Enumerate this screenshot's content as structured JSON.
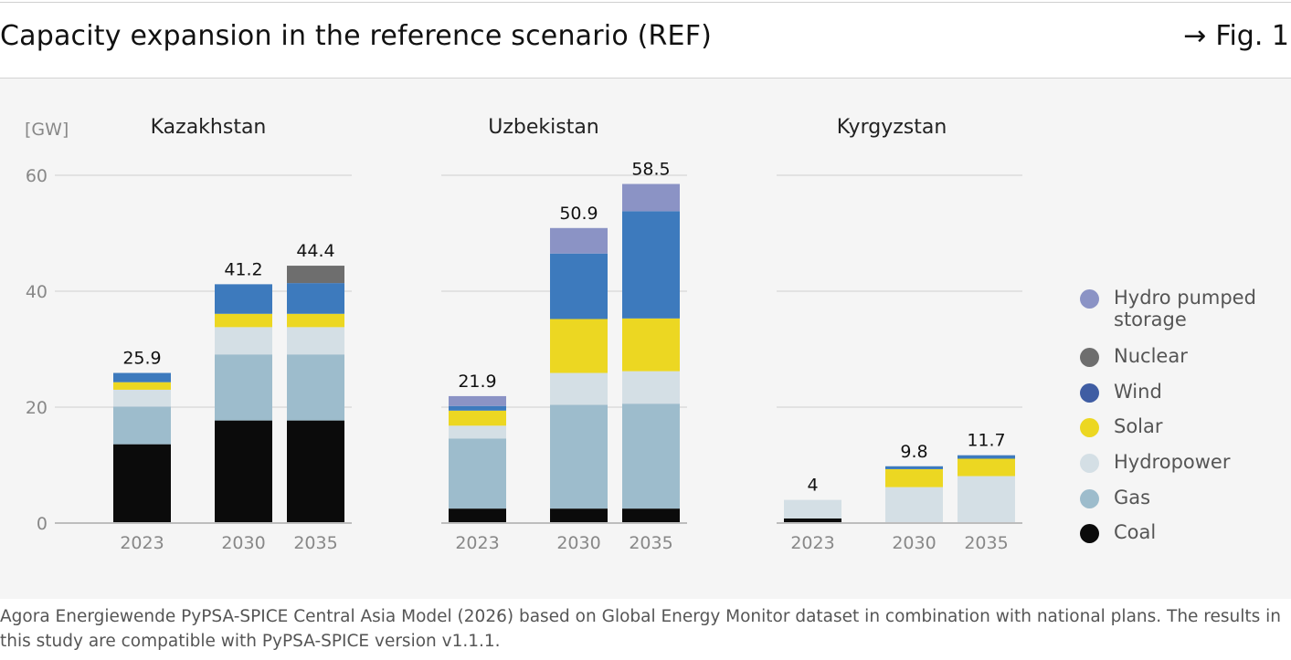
{
  "header": {
    "title": "Capacity expansion in the reference scenario (REF)",
    "fig_arrow": "→",
    "fig_label": "Fig. 1"
  },
  "source_note": "Agora Energiewende PyPSA-SPICE Central Asia Model (2026) based on Global Energy Monitor dataset in combination with national plans. The results in this study are compatible with PyPSA-SPICE version v1.1.1.",
  "colors": {
    "Coal": "#0b0b0b",
    "Gas": "#9dbccc",
    "Hydropower": "#d4dfe5",
    "Solar": "#ecd722",
    "Wind": "#3d7abd",
    "Nuclear": "#6e6e6e",
    "Hydro pumped storage": "#8b93c5",
    "legend_wind": "#3f5da3"
  },
  "chart_data": {
    "type": "bar",
    "stacked": true,
    "ylabel": "[GW]",
    "ylim": [
      0,
      60
    ],
    "yticks": [
      0,
      20,
      40,
      60
    ],
    "grid": true,
    "legend_position": "right",
    "legend": [
      "Hydro pumped storage",
      "Nuclear",
      "Wind",
      "Solar",
      "Hydropower",
      "Gas",
      "Coal"
    ],
    "stack_order": [
      "Coal",
      "Gas",
      "Hydropower",
      "Solar",
      "Wind",
      "Nuclear",
      "Hydro pumped storage"
    ],
    "panels": [
      {
        "title": "Kazakhstan",
        "categories": [
          "2023",
          "2030",
          "2035"
        ],
        "totals": [
          "25.9",
          "41.2",
          "44.4"
        ],
        "series": [
          {
            "name": "Coal",
            "values": [
              13.6,
              17.7,
              17.7
            ]
          },
          {
            "name": "Gas",
            "values": [
              6.5,
              11.4,
              11.4
            ]
          },
          {
            "name": "Hydropower",
            "values": [
              2.9,
              4.7,
              4.7
            ]
          },
          {
            "name": "Solar",
            "values": [
              1.3,
              2.3,
              2.3
            ]
          },
          {
            "name": "Wind",
            "values": [
              1.6,
              5.1,
              5.3
            ]
          },
          {
            "name": "Nuclear",
            "values": [
              0,
              0,
              3.0
            ]
          },
          {
            "name": "Hydro pumped storage",
            "values": [
              0,
              0,
              0
            ]
          }
        ]
      },
      {
        "title": "Uzbekistan",
        "categories": [
          "2023",
          "2030",
          "2035"
        ],
        "totals": [
          "21.9",
          "50.9",
          "58.5"
        ],
        "series": [
          {
            "name": "Coal",
            "values": [
              2.5,
              2.5,
              2.5
            ]
          },
          {
            "name": "Gas",
            "values": [
              12.1,
              17.9,
              18.1
            ]
          },
          {
            "name": "Hydropower",
            "values": [
              2.2,
              5.5,
              5.6
            ]
          },
          {
            "name": "Solar",
            "values": [
              2.6,
              9.3,
              9.1
            ]
          },
          {
            "name": "Wind",
            "values": [
              0.8,
              11.3,
              18.5
            ]
          },
          {
            "name": "Nuclear",
            "values": [
              0,
              0,
              0
            ]
          },
          {
            "name": "Hydro pumped storage",
            "values": [
              1.7,
              4.4,
              4.7
            ]
          }
        ]
      },
      {
        "title": "Kyrgyzstan",
        "categories": [
          "2023",
          "2030",
          "2035"
        ],
        "totals": [
          "4",
          "9.8",
          "11.7"
        ],
        "series": [
          {
            "name": "Coal",
            "values": [
              0.8,
              0,
              0
            ]
          },
          {
            "name": "Gas",
            "values": [
              0,
              0,
              0
            ]
          },
          {
            "name": "Hydropower",
            "values": [
              3.2,
              6.2,
              8.1
            ]
          },
          {
            "name": "Solar",
            "values": [
              0,
              3.1,
              3.0
            ]
          },
          {
            "name": "Wind",
            "values": [
              0,
              0.5,
              0.6
            ]
          },
          {
            "name": "Nuclear",
            "values": [
              0,
              0,
              0
            ]
          },
          {
            "name": "Hydro pumped storage",
            "values": [
              0,
              0,
              0
            ]
          }
        ]
      }
    ]
  },
  "legend_items": [
    {
      "label": "Hydro pumped storage",
      "color": "#8b93c5"
    },
    {
      "label": "Nuclear",
      "color": "#6e6e6e"
    },
    {
      "label": "Wind",
      "color": "#3f5da3"
    },
    {
      "label": "Solar",
      "color": "#ecd722"
    },
    {
      "label": "Hydropower",
      "color": "#d4dfe5"
    },
    {
      "label": "Gas",
      "color": "#9dbccc"
    },
    {
      "label": "Coal",
      "color": "#0b0b0b"
    }
  ]
}
